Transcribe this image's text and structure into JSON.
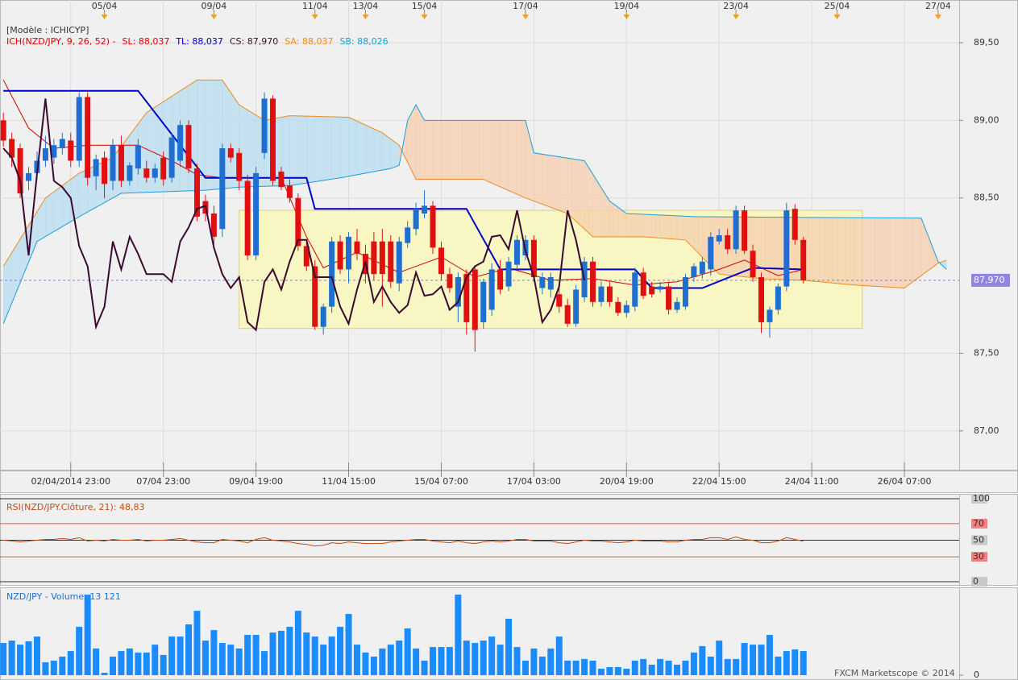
{
  "chart_data": [
    {
      "type": "candlestick",
      "model": "[Modèle : ICHICYP]",
      "header": [
        {
          "text": "ICH(NZD/JPY, 9, 26, 52) -",
          "color": "#e00000"
        },
        {
          "text": "SL: 88,037",
          "color": "#e00000"
        },
        {
          "text": "TL: 88,037",
          "color": "#0000c8"
        },
        {
          "text": "CS: 87,970",
          "color": "#3a1030"
        },
        {
          "text": "SA: 88,037",
          "color": "#f08a20"
        },
        {
          "text": "SB: 88,026",
          "color": "#1aa0d8"
        }
      ],
      "displacement": 26,
      "up_color": "#1f6fd0",
      "down_color": "#e01010",
      "open": [
        89.0,
        88.88,
        88.82,
        88.61,
        88.66,
        88.74,
        88.76,
        88.82,
        88.87,
        88.74,
        89.15,
        88.64,
        88.76,
        88.61,
        88.84,
        88.61,
        88.69,
        88.69,
        88.63,
        88.76,
        88.63,
        88.74,
        88.97,
        88.69,
        88.48,
        88.4,
        88.3,
        88.82,
        88.79,
        88.61,
        88.13,
        88.79,
        89.14,
        88.67,
        88.58,
        88.5,
        88.19,
        88.06,
        87.67,
        87.8,
        88.22,
        88.04,
        88.22,
        88.14,
        88.22,
        88.22,
        88.22,
        87.95,
        88.21,
        88.3,
        88.4,
        88.45,
        88.18,
        88.01,
        87.8,
        88.01,
        88.04,
        87.7,
        87.78,
        88.04,
        87.93,
        88.07,
        88.13,
        88.23,
        87.92,
        87.91,
        87.88,
        87.81,
        87.69,
        87.86,
        88.09,
        87.83,
        87.93,
        87.83,
        87.76,
        87.8,
        88.02,
        87.93,
        87.91,
        87.93,
        87.78,
        87.8,
        87.99,
        88.01,
        88.04,
        88.22,
        88.26,
        88.17,
        88.42,
        88.16,
        87.99,
        87.7,
        87.78,
        87.93,
        88.43,
        88.23
      ],
      "high": [
        89.05,
        88.92,
        88.85,
        88.7,
        88.8,
        88.9,
        88.88,
        88.92,
        88.92,
        89.18,
        89.18,
        88.78,
        88.8,
        88.88,
        88.9,
        88.73,
        88.88,
        88.74,
        88.72,
        88.8,
        88.92,
        89.0,
        89.0,
        88.72,
        88.52,
        88.45,
        88.85,
        88.85,
        88.82,
        88.65,
        88.7,
        89.18,
        89.16,
        88.7,
        88.62,
        88.53,
        88.22,
        88.1,
        87.82,
        88.25,
        88.26,
        88.28,
        88.3,
        88.2,
        88.28,
        88.3,
        88.26,
        88.25,
        88.35,
        88.47,
        88.55,
        88.48,
        88.22,
        88.05,
        88.02,
        88.04,
        88.06,
        87.98,
        88.08,
        88.1,
        88.12,
        88.26,
        88.26,
        88.26,
        88.02,
        88.02,
        87.92,
        87.85,
        87.94,
        88.12,
        88.12,
        87.96,
        87.96,
        87.86,
        87.84,
        88.05,
        88.05,
        87.96,
        87.96,
        87.96,
        87.86,
        88.01,
        88.08,
        88.12,
        88.28,
        88.3,
        88.3,
        88.45,
        88.45,
        88.2,
        88.02,
        87.8,
        87.95,
        88.47,
        88.46,
        88.25
      ],
      "low": [
        88.83,
        88.7,
        88.5,
        88.55,
        88.62,
        88.7,
        88.72,
        88.78,
        88.7,
        88.7,
        88.58,
        88.55,
        88.5,
        88.55,
        88.57,
        88.58,
        88.65,
        88.6,
        88.6,
        88.58,
        88.6,
        88.7,
        88.66,
        88.35,
        88.35,
        88.2,
        88.25,
        88.73,
        88.55,
        88.1,
        88.1,
        88.75,
        88.58,
        88.55,
        88.47,
        88.16,
        88.03,
        87.65,
        87.62,
        87.76,
        88.01,
        87.95,
        88.1,
        87.95,
        87.97,
        87.8,
        87.92,
        87.9,
        88.18,
        88.26,
        88.37,
        88.14,
        87.97,
        87.89,
        87.7,
        87.62,
        87.51,
        87.66,
        87.74,
        87.88,
        87.9,
        88.04,
        88.1,
        87.96,
        87.88,
        87.86,
        87.76,
        87.67,
        87.67,
        87.83,
        87.8,
        87.8,
        87.8,
        87.74,
        87.73,
        87.77,
        87.85,
        87.86,
        87.89,
        87.75,
        87.76,
        87.78,
        87.96,
        87.98,
        88.0,
        88.2,
        88.14,
        88.14,
        88.14,
        87.96,
        87.63,
        87.6,
        87.75,
        87.9,
        88.2,
        87.95
      ],
      "close": [
        88.87,
        88.76,
        88.53,
        88.66,
        88.74,
        88.82,
        88.84,
        88.88,
        88.74,
        89.15,
        88.63,
        88.75,
        88.59,
        88.84,
        88.61,
        88.71,
        88.84,
        88.63,
        88.69,
        88.62,
        88.89,
        88.97,
        88.69,
        88.38,
        88.4,
        88.25,
        88.82,
        88.76,
        88.61,
        88.13,
        88.66,
        89.14,
        88.61,
        88.57,
        88.5,
        88.19,
        88.06,
        87.67,
        87.8,
        88.22,
        88.04,
        88.25,
        88.14,
        88.01,
        88.01,
        88.01,
        87.96,
        88.22,
        88.31,
        88.43,
        88.45,
        88.18,
        88.01,
        87.92,
        87.99,
        87.7,
        87.65,
        87.96,
        88.04,
        87.91,
        88.09,
        88.23,
        88.23,
        87.99,
        87.99,
        87.99,
        87.8,
        87.69,
        87.91,
        88.09,
        87.83,
        87.93,
        87.83,
        87.76,
        87.81,
        88.02,
        87.87,
        87.88,
        87.93,
        87.78,
        87.83,
        87.99,
        88.06,
        88.09,
        88.25,
        88.26,
        88.17,
        88.42,
        88.16,
        87.99,
        87.7,
        87.78,
        87.93,
        88.42,
        88.23,
        87.97
      ],
      "tl": {
        "color": "#0000c8",
        "x": [
          0,
          16,
          24,
          36,
          37,
          55,
          59,
          75,
          77,
          83,
          89,
          95
        ],
        "values": [
          89.19,
          89.19,
          88.63,
          88.63,
          88.43,
          88.43,
          88.04,
          88.04,
          87.92,
          87.92,
          88.05,
          88.04
        ]
      },
      "sl": {
        "color": "#d00000",
        "x": [
          0,
          3,
          6,
          10,
          16,
          20,
          23,
          26,
          30,
          33,
          36,
          38,
          42,
          47,
          52,
          56,
          60,
          65,
          70,
          75,
          80,
          85,
          88,
          92,
          95
        ],
        "values": [
          89.26,
          88.95,
          88.82,
          88.84,
          88.84,
          88.74,
          88.65,
          88.63,
          88.63,
          88.63,
          88.25,
          88.05,
          88.15,
          88.02,
          88.12,
          87.99,
          88.05,
          87.97,
          87.98,
          87.94,
          87.96,
          88.04,
          88.1,
          88.0,
          88.04
        ]
      },
      "cs_color": "#3a0a30",
      "sa": {
        "color": "#f08a20",
        "x": [
          0,
          5,
          9,
          13,
          17,
          23,
          26,
          28,
          31,
          34,
          41,
          45,
          47,
          49,
          57,
          62,
          67,
          70,
          76,
          81,
          85,
          90,
          95,
          101,
          107,
          111,
          112
        ],
        "values": [
          88.06,
          88.5,
          88.66,
          88.76,
          89.05,
          89.26,
          89.26,
          89.1,
          89.0,
          89.03,
          89.02,
          88.92,
          88.84,
          88.62,
          88.62,
          88.5,
          88.4,
          88.25,
          88.25,
          88.23,
          88.01,
          87.98,
          87.97,
          87.94,
          87.92,
          88.08,
          88.1
        ]
      },
      "sb": {
        "color": "#1aa0d8",
        "x": [
          0,
          4,
          9,
          14,
          19,
          24,
          28,
          34,
          40,
          46,
          47,
          48,
          49,
          50,
          62,
          63,
          69,
          72,
          74,
          82,
          109,
          111,
          112
        ],
        "values": [
          87.69,
          88.22,
          88.38,
          88.53,
          88.54,
          88.55,
          88.57,
          88.58,
          88.63,
          88.69,
          88.71,
          89.0,
          89.1,
          89.0,
          89.0,
          88.79,
          88.74,
          88.48,
          88.4,
          88.38,
          88.37,
          88.09,
          88.04
        ]
      },
      "cloud_colors": [
        "#b8dcf0",
        "#f5cfae"
      ],
      "box": {
        "x": [
          28,
          102
        ],
        "y": [
          87.66,
          88.42
        ],
        "color": "#f8f6c2"
      },
      "last_price": {
        "value": 87.97,
        "label": "87,970"
      },
      "xlim": [
        -0.4,
        113.5
      ],
      "ylim": [
        86.75,
        89.775
      ],
      "yticks": [
        {
          "value": 87,
          "label": "87,00"
        },
        {
          "value": 87.5,
          "label": "87,50"
        },
        {
          "value": 88.5,
          "label": "88,50"
        },
        {
          "value": 89,
          "label": "89,00"
        },
        {
          "value": 89.5,
          "label": "89,50"
        }
      ],
      "xticks": [
        {
          "value": 8,
          "label": "02/04/2014 23:00"
        },
        {
          "value": 19,
          "label": "07/04 23:00"
        },
        {
          "value": 30,
          "label": "09/04 19:00"
        },
        {
          "value": 41,
          "label": "11/04 15:00"
        },
        {
          "value": 52,
          "label": "15/04 07:00"
        },
        {
          "value": 63,
          "label": "17/04 03:00"
        },
        {
          "value": 74,
          "label": "20/04 19:00"
        },
        {
          "value": 85,
          "label": "22/04 15:00"
        },
        {
          "value": 96,
          "label": "24/04 11:00"
        },
        {
          "value": 107,
          "label": "26/04 07:00"
        }
      ],
      "top_xticks": [
        {
          "value": 12,
          "label": "05/04"
        },
        {
          "value": 25,
          "label": "09/04"
        },
        {
          "value": 37,
          "label": "11/04"
        },
        {
          "value": 43,
          "label": "13/04"
        },
        {
          "value": 50,
          "label": "15/04"
        },
        {
          "value": 62,
          "label": "17/04"
        },
        {
          "value": 74,
          "label": "19/04"
        },
        {
          "value": 87,
          "label": "23/04"
        },
        {
          "value": 99,
          "label": "25/04"
        },
        {
          "value": 111,
          "label": "27/04"
        }
      ],
      "grid": true
    },
    {
      "type": "line",
      "title": "RSI(NZD/JPY.Clôture, 21): 48,83",
      "color": "#c84a10",
      "values": [
        50,
        49,
        48,
        49,
        50,
        51,
        51,
        52,
        51,
        53,
        49,
        50,
        49,
        51,
        50,
        50,
        51,
        49,
        50,
        50,
        51,
        52,
        50,
        48,
        47,
        47,
        51,
        50,
        49,
        47,
        51,
        53,
        50,
        49,
        48,
        46,
        45,
        43,
        44,
        47,
        46,
        48,
        47,
        46,
        46,
        46,
        48,
        49,
        50,
        51,
        51,
        49,
        48,
        47,
        49,
        47,
        46,
        48,
        49,
        48,
        49,
        51,
        51,
        49,
        49,
        49,
        47,
        46,
        48,
        50,
        49,
        49,
        48,
        47,
        48,
        50,
        49,
        49,
        49,
        48,
        48,
        50,
        51,
        51,
        53,
        53,
        51,
        54,
        51,
        50,
        47,
        47,
        49,
        53,
        51,
        48.83
      ],
      "ylim": [
        0,
        100
      ],
      "yticks": [
        100,
        70,
        50,
        30,
        0
      ],
      "ytick_colors": [
        "#000000",
        "#e03030",
        "#000000",
        "#e03030",
        "#000000"
      ]
    },
    {
      "type": "bar",
      "title": "NZD/JPY - Volume: 13 121",
      "color": "#1a8cff",
      "values": [
        17500,
        18800,
        16600,
        18400,
        21000,
        7000,
        7900,
        10100,
        13100,
        26300,
        43800,
        14500,
        1300,
        10100,
        13100,
        14500,
        12300,
        12300,
        16600,
        11000,
        21000,
        21000,
        27600,
        35000,
        18800,
        24500,
        17500,
        16600,
        14500,
        21900,
        21900,
        13100,
        23200,
        24100,
        26300,
        35000,
        23200,
        21000,
        16600,
        21000,
        26300,
        33300,
        16600,
        12300,
        10100,
        14500,
        16600,
        18800,
        25400,
        14500,
        7900,
        15300,
        15300,
        15300,
        43800,
        18800,
        17500,
        18800,
        21000,
        16600,
        30700,
        15300,
        7900,
        14500,
        10100,
        14500,
        21000,
        7900,
        7900,
        8800,
        7900,
        3500,
        4400,
        4400,
        3500,
        7900,
        8800,
        5700,
        8800,
        7900,
        5700,
        7900,
        12300,
        15800,
        10100,
        18800,
        8800,
        8800,
        17500,
        16600,
        16600,
        21900,
        10100,
        13100,
        14000,
        13121
      ],
      "ylim": [
        0,
        46000
      ],
      "yticks": [
        0
      ]
    }
  ],
  "footer": "FXCM Marketscope © 2014"
}
